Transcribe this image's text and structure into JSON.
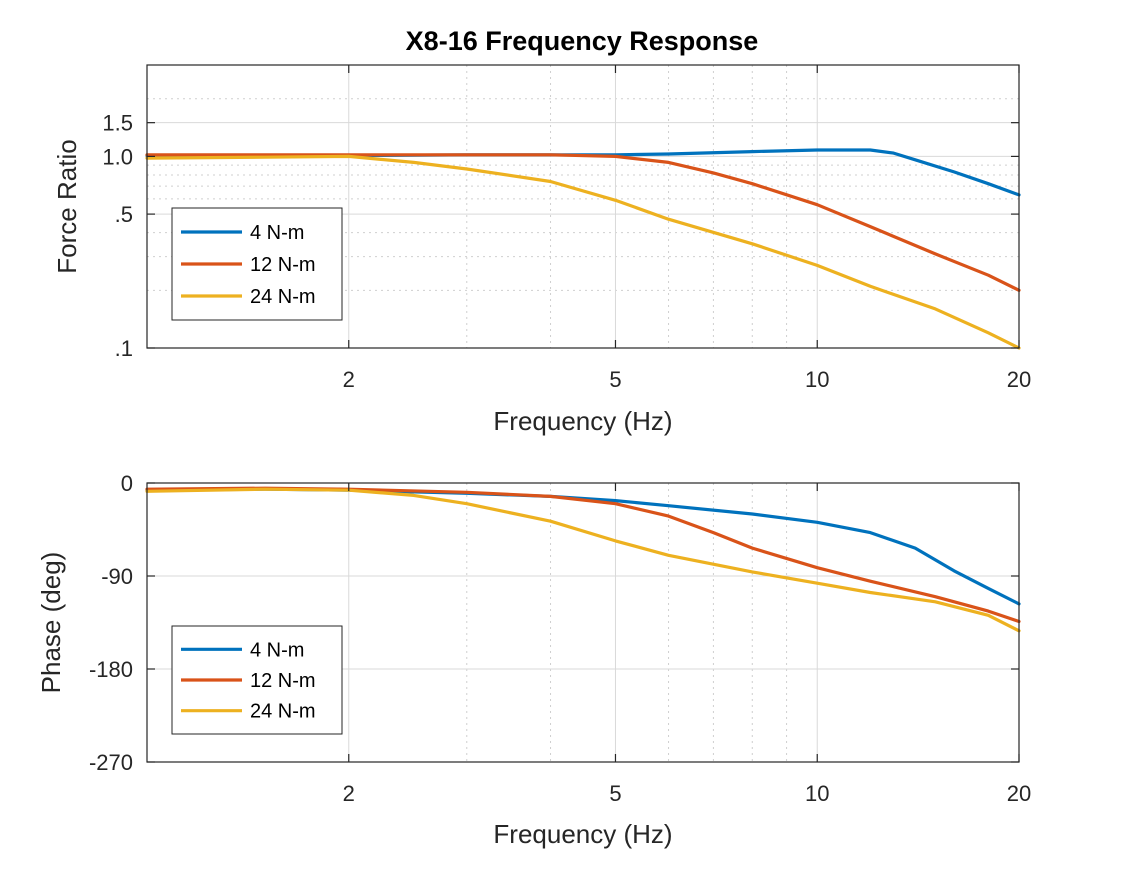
{
  "figure_title": "X8-16 Frequency Response",
  "colors": {
    "s4": "#0072BD",
    "s12": "#D95319",
    "s24": "#EDB120",
    "grid": "#d9d9d9",
    "axis": "#262626"
  },
  "chart_data": [
    {
      "type": "line",
      "title": "X8-16 Frequency Response",
      "xlabel": "Frequency (Hz)",
      "ylabel": "Force Ratio",
      "xscale": "log",
      "yscale": "log",
      "xlim": [
        1,
        20
      ],
      "ylim": [
        0.1,
        3
      ],
      "xticks": [
        2,
        5,
        10,
        20
      ],
      "xticklabels": [
        "2",
        "5",
        "10",
        "20"
      ],
      "yticks": [
        0.1,
        0.5,
        1.0,
        1.5
      ],
      "yticklabels": [
        ".1",
        ".5",
        "1.0",
        "1.5"
      ],
      "grid": true,
      "legend": "bottom-left",
      "series": [
        {
          "name": "4 N-m",
          "x": [
            1,
            2,
            3,
            4,
            5,
            6,
            8,
            10,
            12,
            13,
            14,
            16,
            18,
            20
          ],
          "y": [
            1.01,
            1.01,
            1.02,
            1.02,
            1.02,
            1.03,
            1.06,
            1.08,
            1.08,
            1.04,
            0.96,
            0.83,
            0.72,
            0.63
          ]
        },
        {
          "name": "12 N-m",
          "x": [
            1,
            2,
            3,
            4,
            5,
            6,
            7,
            8,
            10,
            12,
            15,
            18,
            20
          ],
          "y": [
            1.02,
            1.02,
            1.02,
            1.02,
            1.0,
            0.93,
            0.82,
            0.72,
            0.56,
            0.43,
            0.31,
            0.24,
            0.2
          ]
        },
        {
          "name": "24 N-m",
          "x": [
            1,
            1.5,
            2,
            2.5,
            3,
            4,
            5,
            6,
            8,
            10,
            12,
            15,
            18,
            20
          ],
          "y": [
            0.98,
            0.99,
            1.0,
            0.93,
            0.86,
            0.74,
            0.59,
            0.47,
            0.35,
            0.27,
            0.21,
            0.16,
            0.12,
            0.1
          ]
        }
      ]
    },
    {
      "type": "line",
      "xlabel": "Frequency (Hz)",
      "ylabel": "Phase (deg)",
      "xscale": "log",
      "xlim": [
        1,
        20
      ],
      "ylim": [
        -270,
        0
      ],
      "xticks": [
        2,
        5,
        10,
        20
      ],
      "xticklabels": [
        "2",
        "5",
        "10",
        "20"
      ],
      "yticks": [
        0,
        -90,
        -180,
        -270
      ],
      "yticklabels": [
        "0",
        "-90",
        "-180",
        "-270"
      ],
      "grid": true,
      "legend": "bottom-left",
      "series": [
        {
          "name": "4 N-m",
          "x": [
            1,
            1.5,
            2,
            3,
            4,
            5,
            6,
            8,
            10,
            12,
            14,
            16,
            18,
            20
          ],
          "y": [
            -7,
            -6,
            -7,
            -10,
            -13,
            -17,
            -22,
            -30,
            -38,
            -48,
            -63,
            -85,
            -102,
            -117
          ]
        },
        {
          "name": "12 N-m",
          "x": [
            1,
            1.5,
            2,
            3,
            4,
            5,
            6,
            7,
            8,
            10,
            12,
            15,
            18,
            20
          ],
          "y": [
            -6,
            -5,
            -6,
            -9,
            -13,
            -20,
            -32,
            -48,
            -63,
            -82,
            -95,
            -110,
            -124,
            -134
          ]
        },
        {
          "name": "24 N-m",
          "x": [
            1,
            1.5,
            2,
            2.5,
            3,
            4,
            5,
            6,
            8,
            10,
            12,
            15,
            18,
            20
          ],
          "y": [
            -8,
            -6,
            -7,
            -12,
            -20,
            -37,
            -56,
            -70,
            -86,
            -97,
            -106,
            -115,
            -128,
            -143
          ]
        }
      ]
    }
  ]
}
